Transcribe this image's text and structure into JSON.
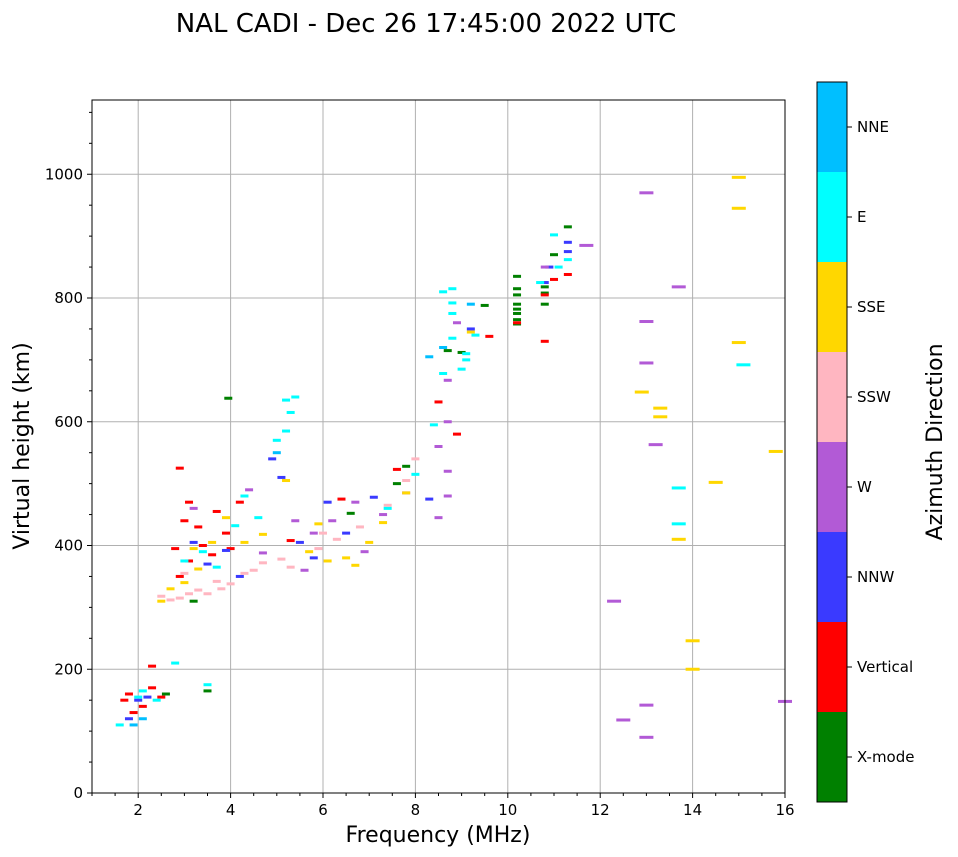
{
  "chart_data": {
    "type": "scatter",
    "title": "NAL CADI - Dec 26 17:45:00 2022 UTC",
    "xlabel": "Frequency (MHz)",
    "ylabel": "Virtual height (km)",
    "xlim": [
      1,
      16
    ],
    "ylim": [
      0,
      1120
    ],
    "xticks": [
      2,
      4,
      6,
      8,
      10,
      12,
      14,
      16
    ],
    "yticks": [
      0,
      200,
      400,
      600,
      800,
      1000
    ],
    "grid": true,
    "colorbar": {
      "label": "Azimuth Direction",
      "categories": [
        {
          "name": "X-mode",
          "color": "#008000"
        },
        {
          "name": "Vertical",
          "color": "#ff0000"
        },
        {
          "name": "NNW",
          "color": "#3a3aff"
        },
        {
          "name": "W",
          "color": "#b25ad6"
        },
        {
          "name": "SSW",
          "color": "#ffb6c1"
        },
        {
          "name": "SSE",
          "color": "#ffd700"
        },
        {
          "name": "E",
          "color": "#00ffff"
        },
        {
          "name": "NNE",
          "color": "#00bfff"
        }
      ]
    },
    "series": [
      {
        "name": "X-mode",
        "points": [
          [
            10.2,
            835
          ],
          [
            10.2,
            815
          ],
          [
            10.2,
            805
          ],
          [
            10.2,
            790
          ],
          [
            10.2,
            782
          ],
          [
            10.2,
            775
          ],
          [
            10.2,
            765
          ],
          [
            10.2,
            758
          ],
          [
            10.8,
            818
          ],
          [
            10.8,
            808
          ],
          [
            10.8,
            790
          ],
          [
            11.0,
            870
          ],
          [
            11.3,
            915
          ],
          [
            3.95,
            638
          ],
          [
            3.5,
            165
          ],
          [
            7.8,
            528
          ],
          [
            9.5,
            788
          ],
          [
            8.7,
            715
          ],
          [
            9.0,
            712
          ],
          [
            2.6,
            160
          ],
          [
            3.2,
            310
          ],
          [
            6.6,
            452
          ],
          [
            7.6,
            500
          ]
        ]
      },
      {
        "name": "Vertical",
        "points": [
          [
            1.7,
            150
          ],
          [
            1.9,
            130
          ],
          [
            1.8,
            160
          ],
          [
            2.1,
            140
          ],
          [
            2.3,
            170
          ],
          [
            2.5,
            155
          ],
          [
            2.9,
            525
          ],
          [
            3.1,
            470
          ],
          [
            3.0,
            440
          ],
          [
            2.8,
            395
          ],
          [
            3.3,
            430
          ],
          [
            3.4,
            400
          ],
          [
            3.1,
            375
          ],
          [
            2.9,
            350
          ],
          [
            3.7,
            455
          ],
          [
            3.9,
            420
          ],
          [
            4.2,
            470
          ],
          [
            4.0,
            395
          ],
          [
            3.6,
            385
          ],
          [
            8.5,
            632
          ],
          [
            8.9,
            580
          ],
          [
            9.6,
            738
          ],
          [
            10.2,
            760
          ],
          [
            10.8,
            805
          ],
          [
            10.8,
            730
          ],
          [
            11.3,
            838
          ],
          [
            11.0,
            830
          ],
          [
            7.6,
            523
          ],
          [
            6.4,
            475
          ],
          [
            5.3,
            408
          ],
          [
            2.3,
            205
          ]
        ]
      },
      {
        "name": "NNW",
        "points": [
          [
            1.8,
            120
          ],
          [
            2.0,
            150
          ],
          [
            2.2,
            155
          ],
          [
            3.2,
            405
          ],
          [
            3.5,
            370
          ],
          [
            3.9,
            392
          ],
          [
            4.2,
            350
          ],
          [
            4.9,
            540
          ],
          [
            5.1,
            510
          ],
          [
            5.5,
            405
          ],
          [
            6.1,
            470
          ],
          [
            6.5,
            420
          ],
          [
            7.1,
            478
          ],
          [
            10.8,
            825
          ],
          [
            11.3,
            890
          ],
          [
            11.3,
            875
          ],
          [
            10.9,
            850
          ],
          [
            8.3,
            475
          ],
          [
            9.2,
            750
          ],
          [
            5.8,
            380
          ]
        ]
      },
      {
        "name": "W",
        "points": [
          [
            4.4,
            490
          ],
          [
            5.4,
            440
          ],
          [
            5.8,
            420
          ],
          [
            6.2,
            440
          ],
          [
            6.7,
            470
          ],
          [
            7.3,
            450
          ],
          [
            7.8,
            485
          ],
          [
            8.5,
            560
          ],
          [
            8.7,
            600
          ],
          [
            8.7,
            520
          ],
          [
            8.7,
            480
          ],
          [
            8.7,
            667
          ],
          [
            8.9,
            760
          ],
          [
            8.5,
            445
          ],
          [
            10.8,
            850
          ],
          [
            11.7,
            885
          ],
          [
            13.0,
            970
          ],
          [
            13.0,
            762
          ],
          [
            13.0,
            695
          ],
          [
            13.2,
            563
          ],
          [
            13.7,
            818
          ],
          [
            12.3,
            310
          ],
          [
            12.5,
            118
          ],
          [
            13.0,
            142
          ],
          [
            13.0,
            90
          ],
          [
            16.0,
            148
          ],
          [
            5.6,
            360
          ],
          [
            6.9,
            390
          ],
          [
            4.7,
            388
          ],
          [
            3.2,
            460
          ]
        ]
      },
      {
        "name": "SSW",
        "points": [
          [
            2.5,
            318
          ],
          [
            2.7,
            312
          ],
          [
            2.9,
            315
          ],
          [
            3.1,
            322
          ],
          [
            3.3,
            328
          ],
          [
            3.5,
            322
          ],
          [
            3.8,
            330
          ],
          [
            4.0,
            338
          ],
          [
            4.3,
            355
          ],
          [
            4.7,
            372
          ],
          [
            5.1,
            378
          ],
          [
            5.3,
            365
          ],
          [
            5.9,
            395
          ],
          [
            6.3,
            410
          ],
          [
            6.8,
            430
          ],
          [
            7.4,
            465
          ],
          [
            7.8,
            505
          ],
          [
            8.0,
            540
          ],
          [
            3.7,
            342
          ],
          [
            6.0,
            420
          ],
          [
            4.5,
            360
          ],
          [
            3.0,
            355
          ]
        ]
      },
      {
        "name": "SSE",
        "points": [
          [
            2.5,
            310
          ],
          [
            3.0,
            340
          ],
          [
            3.3,
            362
          ],
          [
            3.6,
            405
          ],
          [
            3.9,
            445
          ],
          [
            4.3,
            405
          ],
          [
            5.2,
            505
          ],
          [
            5.7,
            390
          ],
          [
            6.1,
            375
          ],
          [
            6.5,
            380
          ],
          [
            7.0,
            405
          ],
          [
            7.3,
            437
          ],
          [
            7.8,
            485
          ],
          [
            12.9,
            648
          ],
          [
            13.3,
            622
          ],
          [
            13.3,
            608
          ],
          [
            13.7,
            410
          ],
          [
            14.0,
            246
          ],
          [
            14.0,
            200
          ],
          [
            14.5,
            502
          ],
          [
            15.0,
            995
          ],
          [
            15.0,
            945
          ],
          [
            15.0,
            728
          ],
          [
            15.8,
            552
          ],
          [
            3.2,
            395
          ],
          [
            4.7,
            418
          ],
          [
            6.7,
            368
          ],
          [
            2.7,
            330
          ],
          [
            5.9,
            435
          ],
          [
            9.2,
            745
          ]
        ]
      },
      {
        "name": "E",
        "points": [
          [
            1.6,
            110
          ],
          [
            2.0,
            155
          ],
          [
            2.1,
            165
          ],
          [
            2.4,
            150
          ],
          [
            2.8,
            210
          ],
          [
            3.0,
            375
          ],
          [
            3.4,
            390
          ],
          [
            3.7,
            365
          ],
          [
            4.1,
            432
          ],
          [
            4.3,
            480
          ],
          [
            5.2,
            635
          ],
          [
            5.3,
            615
          ],
          [
            5.2,
            585
          ],
          [
            5.0,
            570
          ],
          [
            5.4,
            640
          ],
          [
            7.4,
            460
          ],
          [
            8.4,
            595
          ],
          [
            8.8,
            815
          ],
          [
            8.6,
            810
          ],
          [
            8.8,
            792
          ],
          [
            8.8,
            735
          ],
          [
            8.6,
            678
          ],
          [
            9.1,
            710
          ],
          [
            9.3,
            740
          ],
          [
            9.1,
            700
          ],
          [
            10.7,
            825
          ],
          [
            11.3,
            862
          ],
          [
            11.0,
            902
          ],
          [
            13.7,
            493
          ],
          [
            13.7,
            435
          ],
          [
            15.1,
            692
          ],
          [
            3.5,
            175
          ],
          [
            4.6,
            445
          ],
          [
            8.0,
            515
          ],
          [
            9.0,
            685
          ],
          [
            8.8,
            775
          ],
          [
            11.1,
            850
          ]
        ]
      },
      {
        "name": "NNE",
        "points": [
          [
            1.9,
            110
          ],
          [
            2.1,
            120
          ],
          [
            8.3,
            705
          ],
          [
            9.2,
            790
          ],
          [
            8.6,
            720
          ],
          [
            5.0,
            550
          ]
        ]
      }
    ]
  }
}
